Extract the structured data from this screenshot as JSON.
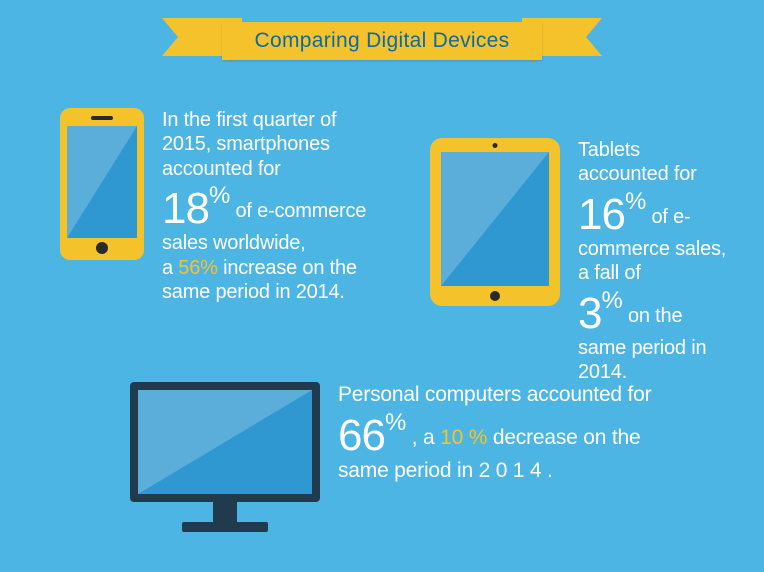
{
  "colors": {
    "background": "#4cb5e3",
    "banner": "#f4c22b",
    "banner_fold": "#c4951a",
    "banner_text": "#0d6aa3",
    "text": "#ffffff",
    "highlight": "#f4c22b",
    "device_body": "#f4c22b",
    "device_dark": "#1f3b4d",
    "screen": "#2f98d0",
    "screen_glare": "rgba(255,255,255,0.22)"
  },
  "typography": {
    "body_fontsize": 20,
    "big_number_fontsize": 44,
    "percent_fontsize": 24,
    "banner_fontsize": 21,
    "font_weight": 300
  },
  "banner": {
    "title": "Comparing Digital Devices"
  },
  "smartphone": {
    "line1": "In the first quarter of 2015, smartphones accounted for",
    "pct": "18",
    "pct_unit": "%",
    "line2": "of e-commerce sales worldwide,",
    "change_prefix": "a ",
    "change_value": "56%",
    "change_suffix": " increase on the same period in 2014."
  },
  "tablet": {
    "line1": "Tablets accounted for",
    "pct": "16",
    "pct_unit": "%",
    "line2": "of e-commerce sales, a fall of",
    "pct2": "3",
    "pct2_unit": "%",
    "line3": "on the same period in 2014."
  },
  "pc": {
    "line1": "Personal computers accounted for",
    "pct": "66",
    "pct_unit": "%",
    "mid": " , a ",
    "change_value": "10 %",
    "line2": " decrease on the same period in  2 0 1 4 ."
  }
}
